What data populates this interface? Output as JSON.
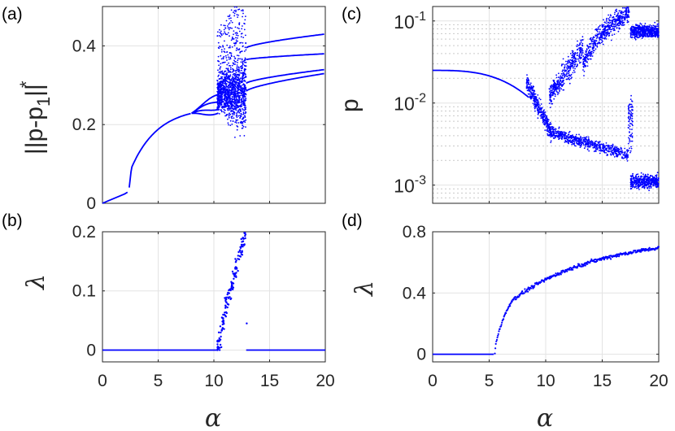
{
  "colors": {
    "data": "#0000ff",
    "axis": "#262626",
    "grid": "#e3e3e3"
  },
  "chart_data": [
    {
      "panel": "(a)",
      "type": "scatter",
      "ylabel_main": "||p-p",
      "ylabel_sub": "1",
      "ylabel_sup": "*",
      "ylabel_end": "||",
      "xlim": [
        0,
        20
      ],
      "ylim": [
        0,
        0.5
      ],
      "xticks": [
        0,
        5,
        10,
        15,
        20
      ],
      "yticks": [
        0,
        0.2,
        0.4
      ],
      "ytick_labels": [
        "0",
        "0.2",
        "0.4"
      ],
      "xtick_labels_shown": false,
      "note": "bifurcation diagram: 0 to 0.04 for alpha<2.3; single branch from 0.04 rising to ~0.23 at alpha 8, splits into 4 branches, chaotic cloud 0.15-0.48 for alpha 10.3-12.9, then four branches ending at 0.43, 0.38, 0.34, 0.33 at alpha 20"
    },
    {
      "panel": "(b)",
      "type": "scatter",
      "ylabel": "λ",
      "xlabel": "α",
      "xlim": [
        0,
        20
      ],
      "ylim": [
        -0.02,
        0.2
      ],
      "xticks": [
        0,
        5,
        10,
        15,
        20
      ],
      "xtick_labels": [
        "0",
        "5",
        "10",
        "15",
        "20"
      ],
      "yticks": [
        0,
        0.1,
        0.2
      ],
      "ytick_labels": [
        "0",
        "0.1",
        "0.2"
      ],
      "note": "lambda = 0 except for alpha 10.3-12.9 where it rises from about 0.0 to 0.2"
    },
    {
      "panel": "(c)",
      "type": "scatter",
      "ylabel": "p",
      "yscale": "log",
      "xlim": [
        0,
        20
      ],
      "ylim": [
        0.0006,
        0.15
      ],
      "xticks": [
        0,
        5,
        10,
        15,
        20
      ],
      "yticks": [
        0.001,
        0.01,
        0.1
      ],
      "ytick_base": "10",
      "ytick_exponents": [
        "-3",
        "-2",
        "-1"
      ],
      "xtick_labels_shown": false,
      "note": "p = 0.025 at alpha 0 decreasing slowly, splitting after alpha ~9 into an upper branch 0.02-0.1 and a lower branch 0.002-0.008; above alpha 17.5 values near 0.07-0.1 and 0.0008-0.0013"
    },
    {
      "panel": "(d)",
      "type": "scatter",
      "ylabel": "λ",
      "xlabel": "α",
      "xlim": [
        0,
        20
      ],
      "ylim": [
        -0.05,
        0.8
      ],
      "xticks": [
        0,
        5,
        10,
        15,
        20
      ],
      "xtick_labels": [
        "0",
        "5",
        "10",
        "15",
        "20"
      ],
      "yticks": [
        0,
        0.4,
        0.8
      ],
      "ytick_labels": [
        "0",
        "0.4",
        "0.8"
      ],
      "note": "lambda = 0 up to alpha ~5.5, then rises quickly to ~0.35 at alpha 7 and slowly to ~0.73 at alpha 20"
    }
  ]
}
